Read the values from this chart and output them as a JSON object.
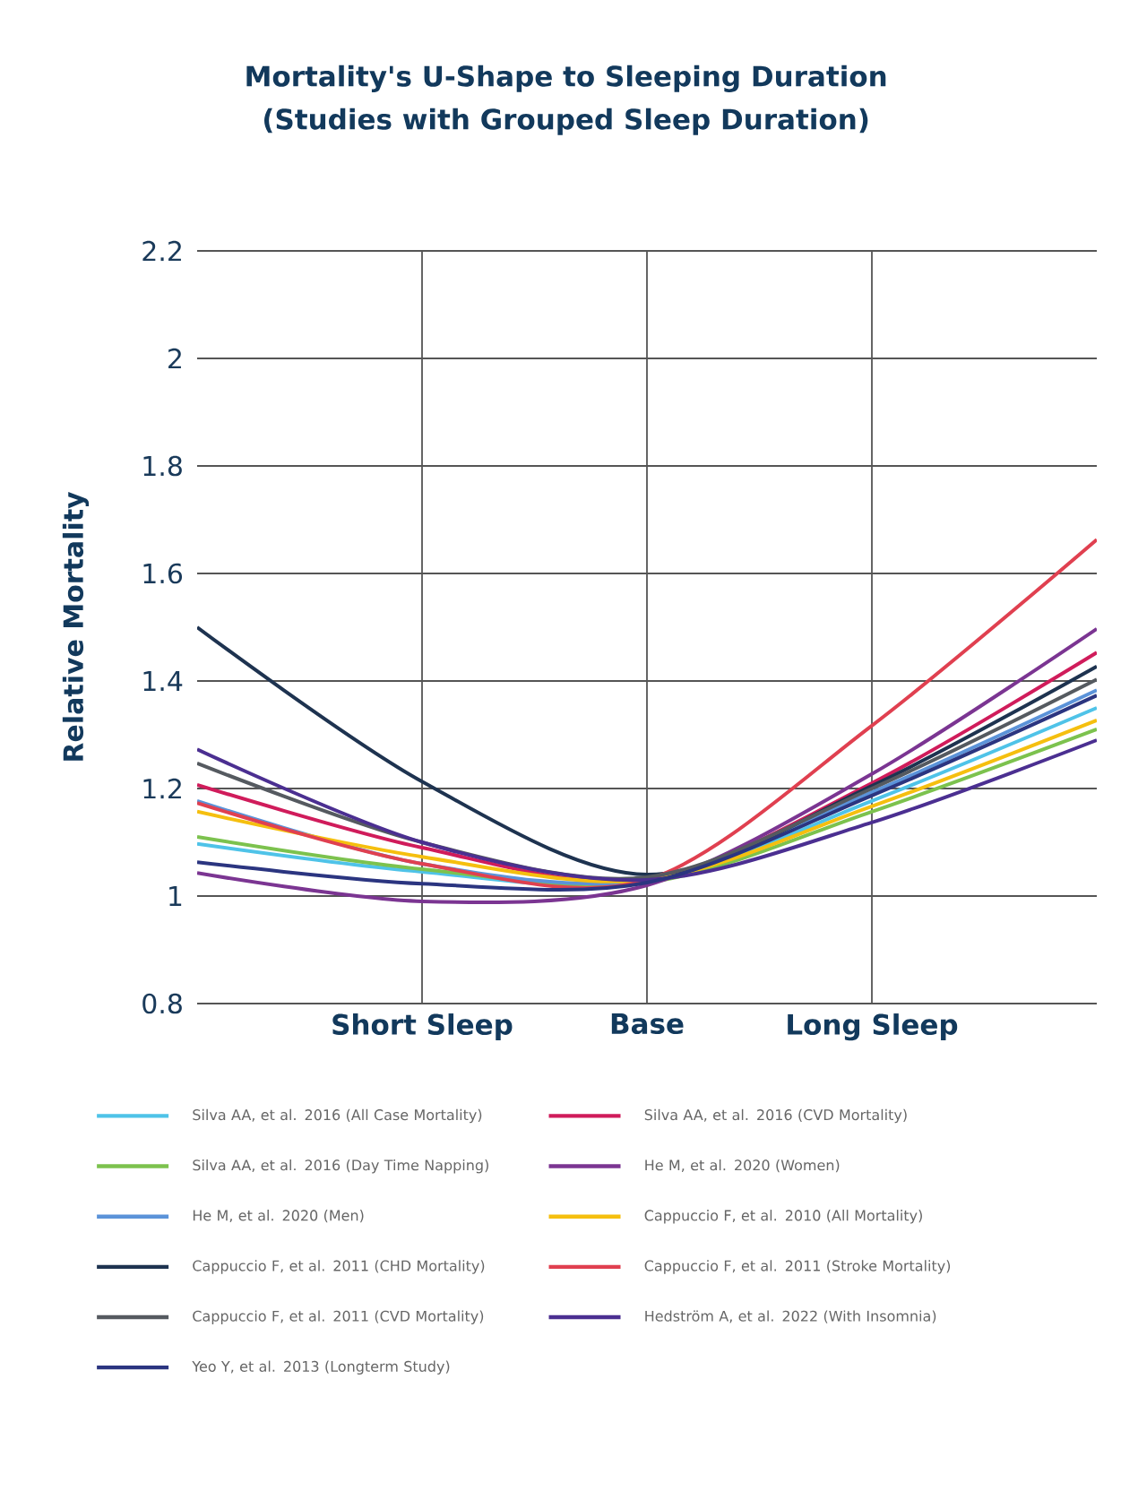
{
  "chart_data": {
    "type": "line",
    "title": "Mortality's U-Shape to Sleeping Duration\n(Studies with Grouped Sleep Duration)",
    "ylabel": "Relative Mortality",
    "categories": [
      null,
      "Short Sleep",
      "Base",
      "Long Sleep",
      null
    ],
    "ylim": [
      0.8,
      2.2
    ],
    "yticks": [
      0.8,
      1,
      1.2,
      1.4,
      1.6,
      1.8,
      2,
      2.2
    ],
    "grid": true,
    "legend": "bottom",
    "tick_labels": "xy",
    "series": [
      {
        "name": "Silva AA, et al. 2016 (All Case Mortality)",
        "color": "#4fc3e8",
        "values": [
          1.097,
          1.045,
          1.025,
          1.177,
          1.35
        ]
      },
      {
        "name": "Silva AA, et al. 2016 (CVD Mortality)",
        "color": "#d01c5b",
        "values": [
          1.207,
          1.09,
          1.03,
          1.21,
          1.453
        ]
      },
      {
        "name": "Silva AA, et al. 2016 (Day Time Napping)",
        "color": "#7cc24e",
        "values": [
          1.11,
          1.05,
          1.025,
          1.157,
          1.31
        ]
      },
      {
        "name": "He M, et al. 2020 (Women)",
        "color": "#7b3592",
        "values": [
          1.043,
          0.99,
          1.02,
          1.227,
          1.497
        ]
      },
      {
        "name": "He M, et al. 2020 (Men)",
        "color": "#5b93d9",
        "values": [
          1.177,
          1.06,
          1.03,
          1.193,
          1.383
        ]
      },
      {
        "name": "Cappuccio F, et al. 2010 (All Mortality)",
        "color": "#f5bf0f",
        "values": [
          1.157,
          1.073,
          1.03,
          1.167,
          1.327
        ]
      },
      {
        "name": "Cappuccio F, et al. 2011 (CHD Mortality)",
        "color": "#1e3350",
        "values": [
          1.5,
          1.213,
          1.04,
          1.205,
          1.427
        ]
      },
      {
        "name": "Cappuccio F, et al. 2011 (Stroke Mortality)",
        "color": "#e04050",
        "values": [
          1.173,
          1.06,
          1.03,
          1.317,
          1.663
        ]
      },
      {
        "name": "Cappuccio F, et al. 2011 (CVD Mortality)",
        "color": "#555a60",
        "values": [
          1.247,
          1.1,
          1.035,
          1.2,
          1.403
        ]
      },
      {
        "name": "Hedström A, et al. 2022 (With Insomnia)",
        "color": "#4b2f91",
        "values": [
          1.273,
          1.1,
          1.03,
          1.137,
          1.29
        ]
      },
      {
        "name": "Yeo Y, et al. 2013 (Longterm Study)",
        "color": "#2b3580",
        "values": [
          1.063,
          1.023,
          1.025,
          1.187,
          1.373
        ]
      }
    ]
  }
}
